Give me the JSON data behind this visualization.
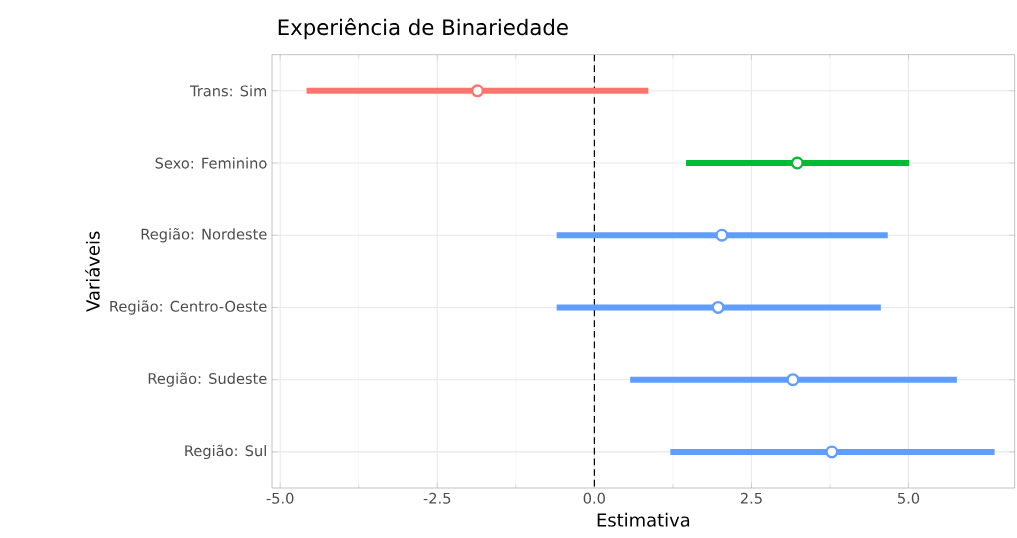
{
  "chart_data": {
    "type": "scatter",
    "orientation": "horizontal",
    "title": "Experiência de Binariedade",
    "xlabel": "Estimativa",
    "ylabel": "Variáveis",
    "categories": [
      "Trans: Sim",
      "Sexo: Feminino",
      "Região: Nordeste",
      "Região: Centro-Oeste",
      "Região: Sudeste",
      "Região: Sul"
    ],
    "values": [
      -1.86,
      3.23,
      2.03,
      1.97,
      3.16,
      3.78
    ],
    "errors": [
      [
        -4.58,
        0.86
      ],
      [
        1.46,
        5.01
      ],
      [
        -0.6,
        4.67
      ],
      [
        -0.6,
        4.56
      ],
      [
        0.57,
        5.77
      ],
      [
        1.21,
        6.37
      ]
    ],
    "colors": [
      "#f8766d",
      "#00ba38",
      "#619cff",
      "#619cff",
      "#619cff",
      "#619cff"
    ],
    "marker": "circle",
    "xlim": [
      -5.13,
      6.69
    ],
    "xticks": [
      {
        "value": -5,
        "label": "-5.0"
      },
      {
        "value": -2.5,
        "label": "-2.5"
      },
      {
        "value": 0,
        "label": "0.0"
      },
      {
        "value": 2.5,
        "label": "2.5"
      },
      {
        "value": 5,
        "label": "5.0"
      }
    ],
    "grid": true,
    "ref_lines": [
      {
        "axis": "x",
        "value": 0,
        "line_style": "dashed",
        "color": "#000000"
      }
    ]
  }
}
